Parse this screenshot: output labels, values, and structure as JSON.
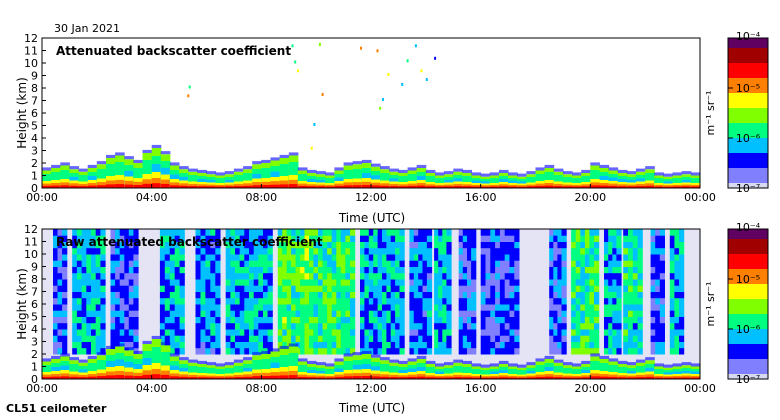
{
  "date_label": "30 Jan 2021",
  "instrument_label": "CL51 ceilometer",
  "chart_data": [
    {
      "type": "heatmap",
      "title": "Attenuated backscatter coefficient",
      "xlabel": "Time (UTC)",
      "ylabel": "Height (km)",
      "x_ticks": [
        "00:00",
        "04:00",
        "08:00",
        "12:00",
        "16:00",
        "20:00",
        "00:00"
      ],
      "y_ticks": [
        "0",
        "1",
        "2",
        "3",
        "4",
        "5",
        "6",
        "7",
        "8",
        "9",
        "10",
        "11",
        "12"
      ],
      "xlim": [
        0,
        24
      ],
      "ylim": [
        0,
        12
      ],
      "colorbar": {
        "label": "m⁻¹ sr⁻¹",
        "scale": "log",
        "ticks": [
          "10⁻⁷",
          "10⁻⁶",
          "10⁻⁵",
          "10⁻⁴"
        ],
        "range": [
          1e-07,
          0.0001
        ]
      },
      "mode": "filtered"
    },
    {
      "type": "heatmap",
      "title": "Raw attenuated backscatter coefficient",
      "xlabel": "Time (UTC)",
      "ylabel": "Height (km)",
      "x_ticks": [
        "00:00",
        "04:00",
        "08:00",
        "12:00",
        "16:00",
        "20:00",
        "00:00"
      ],
      "y_ticks": [
        "0",
        "1",
        "2",
        "3",
        "4",
        "5",
        "6",
        "7",
        "8",
        "9",
        "10",
        "11",
        "12"
      ],
      "xlim": [
        0,
        24
      ],
      "ylim": [
        0,
        12
      ],
      "colorbar": {
        "label": "m⁻¹ sr⁻¹",
        "scale": "log",
        "ticks": [
          "10⁻⁷",
          "10⁻⁶",
          "10⁻⁵",
          "10⁻⁴"
        ],
        "range": [
          1e-07,
          0.0001
        ]
      },
      "mode": "raw"
    }
  ],
  "colors": {
    "cmap": [
      "#d8d8f0",
      "#8080ff",
      "#0000ff",
      "#00c0ff",
      "#00ff80",
      "#80ff00",
      "#ffff00",
      "#ff8000",
      "#ff0000",
      "#a00000",
      "#600060"
    ]
  }
}
